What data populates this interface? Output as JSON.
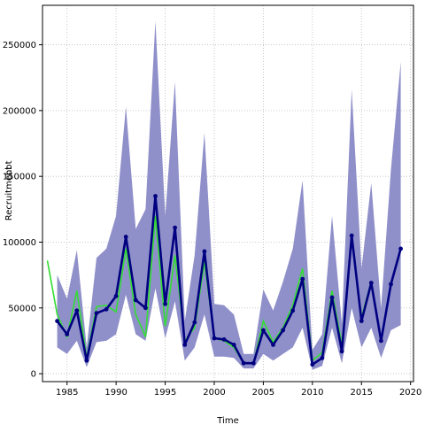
{
  "chart_data": {
    "type": "line",
    "title": "",
    "xlabel": "Time",
    "ylabel": "Recruitment",
    "ylabel_overlay": "cbbt",
    "xlim": [
      1982.5,
      2020.3
    ],
    "ylim": [
      -6000,
      280000
    ],
    "x_ticks": [
      1985,
      1990,
      1995,
      2000,
      2005,
      2010,
      2015,
      2020
    ],
    "y_ticks": [
      0,
      50000,
      100000,
      150000,
      200000,
      250000
    ],
    "grid": true,
    "colors": {
      "band": "#8f8fca",
      "estimate": "#000080",
      "observed": "#33dd33",
      "grid": "#bbbbbb",
      "frame": "#000000"
    },
    "series": [
      {
        "role": "confidence-band",
        "x": [
          1984,
          1985,
          1986,
          1987,
          1988,
          1989,
          1990,
          1991,
          1992,
          1993,
          1994,
          1995,
          1996,
          1997,
          1998,
          1999,
          2000,
          2001,
          2002,
          2003,
          2004,
          2005,
          2006,
          2007,
          2008,
          2009,
          2010,
          2011,
          2012,
          2013,
          2014,
          2015,
          2016,
          2017,
          2018,
          2019
        ],
        "lower": [
          20000,
          15000,
          25000,
          5000,
          24000,
          25000,
          30000,
          60000,
          30000,
          25000,
          65000,
          27000,
          55000,
          10000,
          20000,
          45000,
          13000,
          13000,
          12000,
          4000,
          4000,
          15000,
          10000,
          15000,
          20000,
          35000,
          3000,
          6000,
          35000,
          8000,
          50000,
          20000,
          35000,
          12000,
          33000,
          37000
        ],
        "upper": [
          75000,
          57000,
          94000,
          20000,
          88000,
          95000,
          120000,
          203000,
          110000,
          125000,
          268000,
          120000,
          222000,
          40000,
          90000,
          183000,
          53000,
          52000,
          45000,
          15000,
          15000,
          64000,
          48000,
          70000,
          95000,
          147000,
          18000,
          30000,
          120000,
          38000,
          216000,
          80000,
          145000,
          50000,
          155000,
          237000
        ]
      },
      {
        "role": "estimate",
        "x": [
          1984,
          1985,
          1986,
          1987,
          1988,
          1989,
          1990,
          1991,
          1992,
          1993,
          1994,
          1995,
          1996,
          1997,
          1998,
          1999,
          2000,
          2001,
          2002,
          2003,
          2004,
          2005,
          2006,
          2007,
          2008,
          2009,
          2010,
          2011,
          2012,
          2013,
          2014,
          2015,
          2016,
          2017,
          2018,
          2019
        ],
        "values": [
          40000,
          30000,
          48000,
          10000,
          46000,
          49000,
          59000,
          104000,
          56000,
          50000,
          135000,
          53000,
          111000,
          22000,
          39000,
          93000,
          27000,
          26000,
          22000,
          8000,
          8000,
          33000,
          22000,
          33000,
          48000,
          72000,
          7000,
          12000,
          58000,
          17000,
          105000,
          40000,
          69000,
          25000,
          68000,
          95000
        ]
      },
      {
        "role": "observed",
        "x": [
          1983,
          1984,
          1985,
          1986,
          1987,
          1988,
          1989,
          1990,
          1991,
          1992,
          1993,
          1994,
          1995,
          1996,
          1997,
          1998,
          1999,
          2000,
          2001,
          2002,
          2003,
          2004,
          2005,
          2006,
          2007,
          2008,
          2009,
          2010,
          2011,
          2012,
          2013,
          2014,
          2015,
          2016,
          2017,
          2018,
          2019
        ],
        "values": [
          86000,
          45000,
          28000,
          63000,
          12000,
          51000,
          52000,
          47000,
          95000,
          45000,
          28000,
          120000,
          36000,
          90000,
          25000,
          35000,
          85000,
          27000,
          25000,
          20000,
          8000,
          8000,
          40000,
          24000,
          35000,
          52000,
          80000,
          10000,
          16000,
          63000,
          22000,
          103000,
          43000,
          70000,
          25000,
          68000,
          95000
        ]
      }
    ]
  }
}
